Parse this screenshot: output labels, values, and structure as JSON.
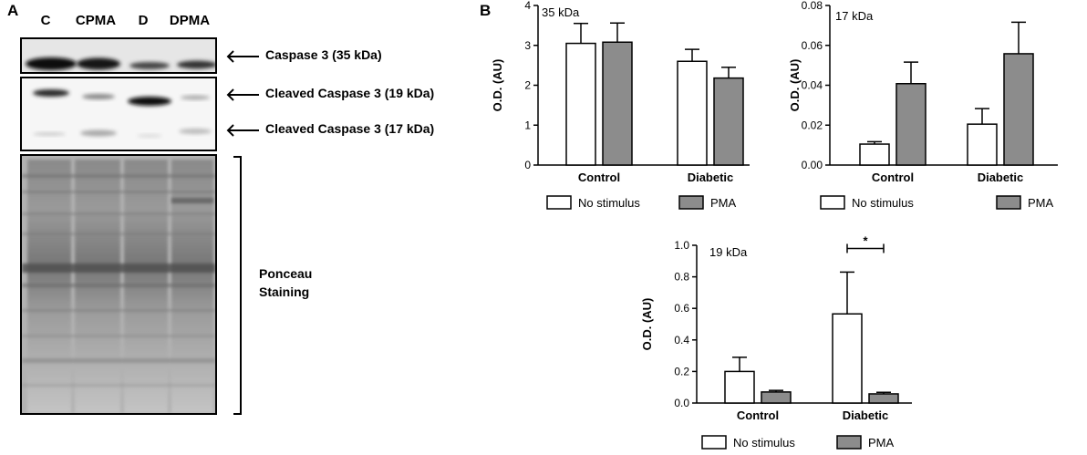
{
  "panel_a": {
    "letter": "A",
    "lanes": [
      "C",
      "CPMA",
      "D",
      "DPMA"
    ],
    "band_labels": {
      "caspase35": "Caspase 3 (35 kDa)",
      "cleaved19": "Cleaved Caspase 3 (19 kDa)",
      "cleaved17": "Cleaved Caspase 3 (17 kDa)"
    },
    "ponceau_line1": "Ponceau",
    "ponceau_line2": "Staining"
  },
  "panel_b": {
    "letter": "B"
  },
  "chart_data": [
    {
      "type": "bar",
      "id": "chart35",
      "title": "35 kDa",
      "ylabel": "O.D. (AU)",
      "xlabel": "",
      "categories": [
        "Control",
        "Diabetic"
      ],
      "ylim": [
        0,
        4
      ],
      "yticks": [
        0,
        1,
        2,
        3,
        4
      ],
      "ytick_labels": [
        "0",
        "1",
        "2",
        "3",
        "4"
      ],
      "series": [
        {
          "name": "No stimulus",
          "color": "#ffffff",
          "values": [
            3.05,
            2.6
          ],
          "errors": [
            0.5,
            0.3
          ]
        },
        {
          "name": "PMA",
          "color": "#8c8c8c",
          "values": [
            3.08,
            2.18
          ],
          "errors": [
            0.48,
            0.27
          ]
        }
      ],
      "significance": []
    },
    {
      "type": "bar",
      "id": "chart17",
      "title": "17 kDa",
      "ylabel": "O.D. (AU)",
      "xlabel": "",
      "categories": [
        "Control",
        "Diabetic"
      ],
      "ylim": [
        0,
        0.08
      ],
      "yticks": [
        0,
        0.02,
        0.04,
        0.06,
        0.08
      ],
      "ytick_labels": [
        "0.00",
        "0.02",
        "0.04",
        "0.06",
        "0.08"
      ],
      "series": [
        {
          "name": "No stimulus",
          "color": "#ffffff",
          "values": [
            0.0105,
            0.0205
          ],
          "errors": [
            0.0012,
            0.0078
          ]
        },
        {
          "name": "PMA",
          "color": "#8c8c8c",
          "values": [
            0.0408,
            0.0558
          ],
          "errors": [
            0.0108,
            0.0158
          ]
        }
      ],
      "significance": []
    },
    {
      "type": "bar",
      "id": "chart19",
      "title": "19 kDa",
      "ylabel": "O.D. (AU)",
      "xlabel": "",
      "categories": [
        "Control",
        "Diabetic"
      ],
      "ylim": [
        0,
        1.0
      ],
      "yticks": [
        0,
        0.2,
        0.4,
        0.6,
        0.8,
        1.0
      ],
      "ytick_labels": [
        "0.0",
        "0.2",
        "0.4",
        "0.6",
        "0.8",
        "1.0"
      ],
      "series": [
        {
          "name": "No stimulus",
          "color": "#ffffff",
          "values": [
            0.2,
            0.565
          ],
          "errors": [
            0.09,
            0.265
          ]
        },
        {
          "name": "PMA",
          "color": "#8c8c8c",
          "values": [
            0.07,
            0.058
          ],
          "errors": [
            0.01,
            0.01
          ]
        }
      ],
      "significance": [
        {
          "category": "Diabetic",
          "label": "*"
        }
      ]
    }
  ]
}
